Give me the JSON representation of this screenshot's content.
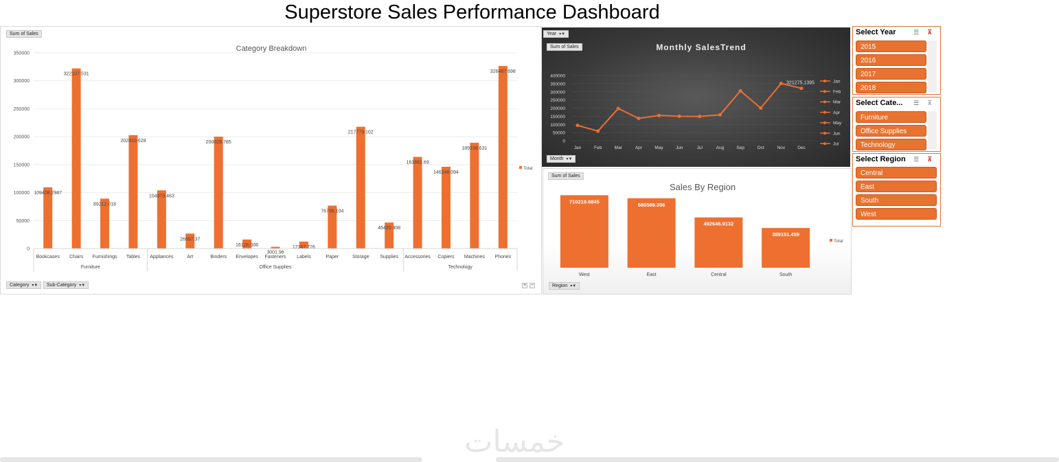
{
  "page": {
    "title": "Superstore Sales Performance Dashboard",
    "watermark": "خمسات"
  },
  "category_chart": {
    "value_pill": "Sum of Sales",
    "category_pill": "Category",
    "subcategory_pill": "Sub-Category",
    "zoom_in": "+",
    "zoom_out": "−"
  },
  "monthly_chart": {
    "year_pill": "Year",
    "value_pill": "Sum of Sales",
    "month_pill": "Month"
  },
  "region_chart": {
    "value_pill": "Sum of Sales",
    "region_pill": "Region"
  },
  "slicers": {
    "year": {
      "title": "Select Year",
      "items": [
        "2015",
        "2016",
        "2017",
        "2018"
      ]
    },
    "category": {
      "title": "Select Cate...",
      "items": [
        "Furniture",
        "Office Supplies",
        "Technology"
      ]
    },
    "region": {
      "title": "Select Region",
      "items": [
        "Central",
        "East",
        "South",
        "West"
      ]
    }
  },
  "colors": {
    "accent": "#ed7031",
    "dark_bg": "#3a3a3a"
  },
  "chart_data": [
    {
      "type": "bar",
      "title": "Category Breakdown",
      "groups": [
        {
          "name": "Furniture",
          "categories": [
            "Bookcases",
            "Chairs",
            "Furnishings",
            "Tables"
          ]
        },
        {
          "name": "Office Supplies",
          "categories": [
            "Appliances",
            "Art",
            "Binders",
            "Envelopes",
            "Fasteners",
            "Labels",
            "Paper",
            "Storage",
            "Supplies"
          ]
        },
        {
          "name": "Technology",
          "categories": [
            "Accessories",
            "Copiers",
            "Machines",
            "Phones"
          ]
        }
      ],
      "categories": [
        "Bookcases",
        "Chairs",
        "Furnishings",
        "Tables",
        "Appliances",
        "Art",
        "Binders",
        "Envelopes",
        "Fasteners",
        "Labels",
        "Paper",
        "Storage",
        "Supplies",
        "Accessories",
        "Copiers",
        "Machines",
        "Phones"
      ],
      "values": [
        109408.2987,
        322107.531,
        89212.018,
        202810.628,
        104075.463,
        26697.37,
        200028.785,
        16126.006,
        3001.96,
        12347.726,
        76736.104,
        217779.102,
        46420.308,
        163881.69,
        146248.094,
        189238.631,
        326487.698
      ],
      "labels": [
        "109408.2987",
        "322107.531",
        "89212.018",
        "202810.628",
        "104075.463",
        "26697.37",
        "200028.785",
        "16126.006",
        "3001.96",
        "12347.726",
        "76736.104",
        "217779.102",
        "46420.308",
        "163881.69",
        "146248.094",
        "189238.631",
        "326487.698"
      ],
      "yticks": [
        "0",
        "50000",
        "100000",
        "150000",
        "200000",
        "250000",
        "300000",
        "350000"
      ],
      "ylim": [
        0,
        350000
      ],
      "legend": [
        "Total"
      ],
      "legend_position": "right",
      "grid": true
    },
    {
      "type": "line",
      "title": "Monthly SalesTrend",
      "x": [
        "Jan",
        "Feb",
        "Mar",
        "Apr",
        "May",
        "Jun",
        "Jul",
        "Aug",
        "Sep",
        "Oct",
        "Nov",
        "Dec"
      ],
      "values": [
        94000,
        59000,
        198000,
        137000,
        155000,
        150000,
        149000,
        159000,
        306000,
        200000,
        351000,
        321275.1395
      ],
      "point_label": "321275.1395",
      "yticks": [
        "0",
        "50000",
        "100000",
        "150000",
        "200000",
        "250000",
        "300000",
        "350000",
        "400000"
      ],
      "ylim": [
        0,
        400000
      ],
      "legend": [
        "Jan",
        "Feb",
        "Mar",
        "Apr",
        "May",
        "Jun",
        "Jul"
      ],
      "legend_position": "right",
      "grid": true
    },
    {
      "type": "bar",
      "title": "Sales By Region",
      "categories": [
        "West",
        "East",
        "Central",
        "South"
      ],
      "values": [
        710219.6845,
        680589.356,
        492646.9132,
        389151.459
      ],
      "labels": [
        "710219.6845",
        "680589.356",
        "492646.9132",
        "389151.459"
      ],
      "ylim": [
        0,
        800000
      ],
      "legend": [
        "Total"
      ],
      "legend_position": "right"
    }
  ]
}
